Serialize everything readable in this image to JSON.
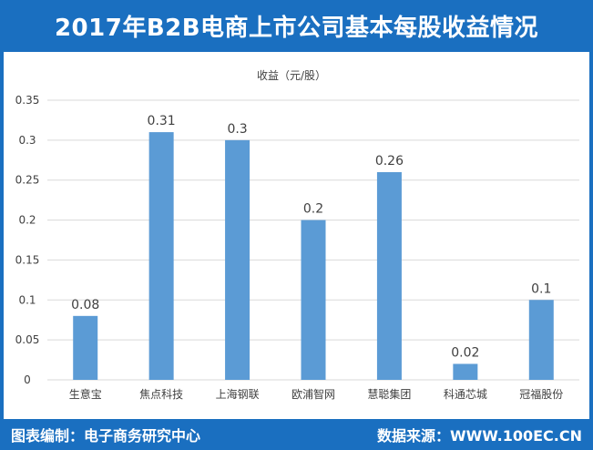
{
  "header": {
    "title": "2017年B2B电商上市公司基本每股收益情况"
  },
  "footer": {
    "left": "图表编制：电子商务研究中心",
    "right": "数据来源：WWW.100EC.CN"
  },
  "chart_data": {
    "type": "bar",
    "title": "收益（元/股）",
    "categories": [
      "生意宝",
      "焦点科技",
      "上海钢联",
      "欧浦智网",
      "慧聪集团",
      "科通芯城",
      "冠福股份"
    ],
    "values": [
      0.08,
      0.31,
      0.3,
      0.2,
      0.26,
      0.02,
      0.1
    ],
    "value_labels": [
      "0.08",
      "0.31",
      "0.3",
      "0.2",
      "0.26",
      "0.02",
      "0.1"
    ],
    "ylim": [
      0,
      0.35
    ],
    "yticks": [
      0,
      0.05,
      0.1,
      0.15,
      0.2,
      0.25,
      0.3,
      0.35
    ],
    "ytick_labels": [
      "0",
      "0.05",
      "0.1",
      "0.15",
      "0.2",
      "0.25",
      "0.3",
      "0.35"
    ],
    "grid": true,
    "bar_color": "#5b9bd5",
    "grid_color": "#d9d9d9"
  }
}
